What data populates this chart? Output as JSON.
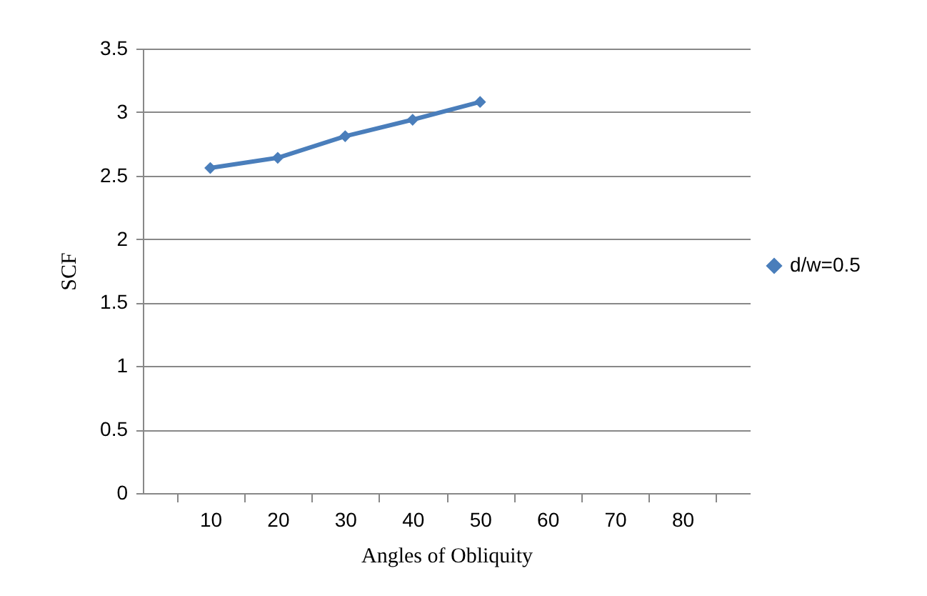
{
  "chart_data": {
    "type": "line",
    "xlabel": "Angles of Obliquity",
    "ylabel": "SCF",
    "categories": [
      "10",
      "20",
      "30",
      "40",
      "50",
      "60",
      "70",
      "80"
    ],
    "series": [
      {
        "name": "d/w=0.5",
        "color": "#4a7ebb",
        "values": [
          2.56,
          2.64,
          2.81,
          2.94,
          3.08,
          null,
          null,
          null
        ]
      }
    ],
    "ylim": [
      0,
      3.5
    ],
    "yticks": [
      {
        "value": 0,
        "label": "0"
      },
      0.5,
      {
        "value": 1,
        "label": "1"
      },
      1.5,
      {
        "value": 2,
        "label": "2"
      },
      2.5,
      {
        "value": 3,
        "label": "3"
      },
      3.5
    ],
    "grid": "y",
    "legend": "right",
    "marker": "diamond",
    "line_style": "solid"
  }
}
